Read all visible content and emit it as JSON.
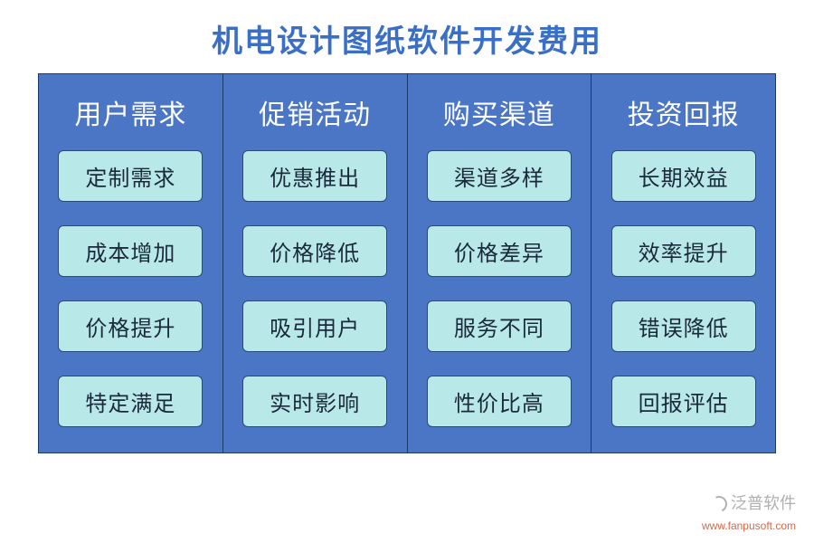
{
  "title": {
    "text": "机电设计图纸软件开发费用",
    "color": "#3a6fc7",
    "fontsize": 34,
    "weight": "bold"
  },
  "panel": {
    "background": "#4a76c5",
    "border_color": "#1a3a6e"
  },
  "column_header_style": {
    "color": "#ffffff",
    "fontsize": 30
  },
  "item_style": {
    "background": "#b9e8e8",
    "color": "#1a2a3a",
    "fontsize": 24,
    "border_color": "#2a4a7a",
    "radius": 6
  },
  "columns": [
    {
      "header": "用户需求",
      "items": [
        "定制需求",
        "成本增加",
        "价格提升",
        "特定满足"
      ]
    },
    {
      "header": "促销活动",
      "items": [
        "优惠推出",
        "价格降低",
        "吸引用户",
        "实时影响"
      ]
    },
    {
      "header": "购买渠道",
      "items": [
        "渠道多样",
        "价格差异",
        "服务不同",
        "性价比高"
      ]
    },
    {
      "header": "投资回报",
      "items": [
        "长期效益",
        "效率提升",
        "错误降低",
        "回报评估"
      ]
    }
  ],
  "watermark": {
    "brand": "泛普软件",
    "url": "www.fanpusoft.com",
    "color": "#b0b0b0",
    "url_color": "#d46a4a",
    "brand_fontsize": 18,
    "url_fontsize": 12
  }
}
